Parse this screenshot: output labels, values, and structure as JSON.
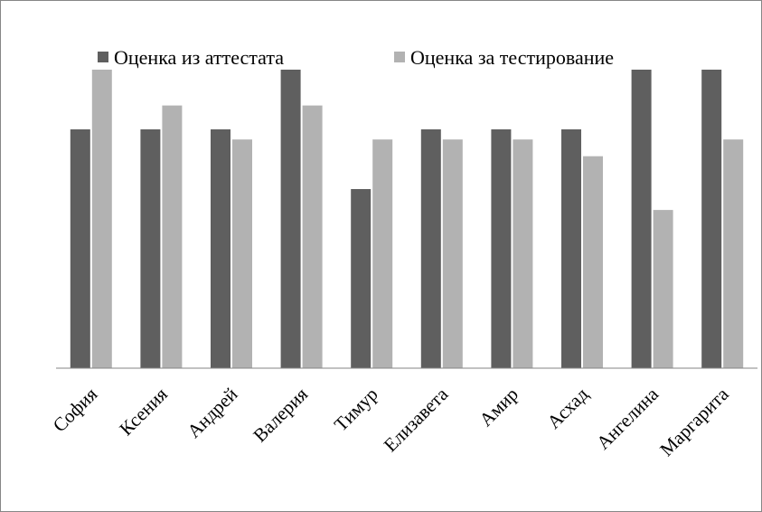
{
  "chart_data": {
    "type": "bar",
    "title": "",
    "xlabel": "",
    "ylabel": "",
    "ylim": [
      0,
      5
    ],
    "grid": false,
    "legend_position": "top",
    "categories": [
      "София",
      "Ксения",
      "Андрей",
      "Валерия",
      "Тимур",
      "Елизавета",
      "Амир",
      "Асхад",
      "Ангелина",
      "Маргарита"
    ],
    "series": [
      {
        "name": "Оценка из аттестата",
        "color": "#5f5f5f",
        "values": [
          4,
          4,
          4,
          5,
          3,
          4,
          4,
          4,
          5,
          5
        ]
      },
      {
        "name": "Оценка за тестирование",
        "color": "#b2b2b2",
        "values": [
          5,
          4.4,
          3.83,
          4.4,
          3.83,
          3.83,
          3.83,
          3.55,
          2.65,
          3.83
        ]
      }
    ]
  }
}
